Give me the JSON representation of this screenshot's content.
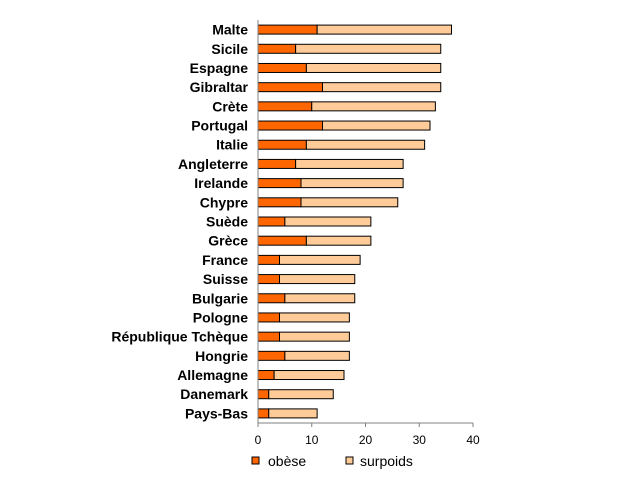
{
  "chart_data": {
    "type": "bar",
    "orientation": "horizontal",
    "stacked": true,
    "categories": [
      "Malte",
      "Sicile",
      "Espagne",
      "Gibraltar",
      "Crète",
      "Portugal",
      "Italie",
      "Angleterre",
      "Irelande",
      "Chypre",
      "Suède",
      "Grèce",
      "France",
      "Suisse",
      "Bulgarie",
      "Pologne",
      "République Tchèque",
      "Hongrie",
      "Allemagne",
      "Danemark",
      "Pays-Bas"
    ],
    "series": [
      {
        "name": "obèse",
        "color": "#FF6600",
        "values": [
          11,
          7,
          9,
          12,
          10,
          12,
          9,
          7,
          8,
          8,
          5,
          9,
          4,
          4,
          5,
          4,
          4,
          5,
          3,
          2,
          2
        ]
      },
      {
        "name": "surpoids",
        "color": "#FFCC99",
        "values": [
          25,
          27,
          25,
          22,
          23,
          20,
          22,
          20,
          19,
          18,
          16,
          12,
          15,
          14,
          13,
          13,
          13,
          12,
          13,
          12,
          9
        ]
      }
    ],
    "xlim": [
      0,
      40
    ],
    "xticks": [
      0,
      10,
      20,
      30,
      40
    ],
    "grid": false,
    "legend_position": "bottom"
  }
}
